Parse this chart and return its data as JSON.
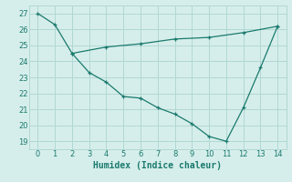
{
  "line1_x": [
    0,
    1,
    2,
    3,
    4,
    5,
    6,
    7,
    8,
    9,
    10,
    11,
    12,
    13,
    14
  ],
  "line1_y": [
    27,
    26.3,
    24.5,
    23.3,
    22.7,
    21.8,
    21.7,
    21.1,
    20.7,
    20.1,
    19.3,
    19.0,
    21.1,
    23.6,
    26.2
  ],
  "line2_x": [
    2,
    4,
    6,
    8,
    10,
    12,
    14
  ],
  "line2_y": [
    24.5,
    24.9,
    25.1,
    25.4,
    25.5,
    25.8,
    26.2
  ],
  "line_color": "#1a7a6e",
  "bg_color": "#d6eeeb",
  "grid_color": "#b0d8d4",
  "xlabel": "Humidex (Indice chaleur)",
  "ylim": [
    18.5,
    27.5
  ],
  "xlim": [
    -0.5,
    14.5
  ],
  "yticks": [
    19,
    20,
    21,
    22,
    23,
    24,
    25,
    26,
    27
  ],
  "xticks": [
    0,
    1,
    2,
    3,
    4,
    5,
    6,
    7,
    8,
    9,
    10,
    11,
    12,
    13,
    14
  ],
  "tick_labelsize": 6,
  "xlabel_fontsize": 7
}
